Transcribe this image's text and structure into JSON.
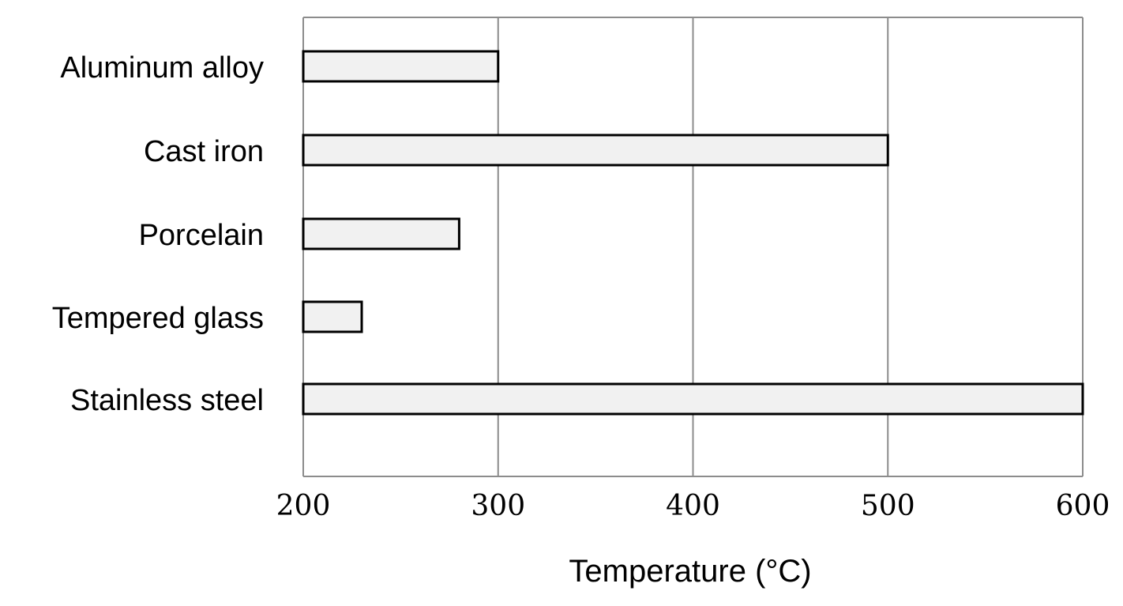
{
  "chart_data": {
    "type": "bar",
    "orientation": "horizontal",
    "categories": [
      "Aluminum alloy",
      "Cast iron",
      "Porcelain",
      "Tempered glass",
      "Stainless steel"
    ],
    "values": [
      300,
      500,
      280,
      230,
      600
    ],
    "title": "",
    "xlabel": "Temperature (°C)",
    "ylabel": "",
    "xlim": [
      200,
      600
    ],
    "xticks": [
      200,
      300,
      400,
      500,
      600
    ],
    "grid": "vertical",
    "legend": "none",
    "colors": {
      "bar_fill": "#f1f1f1",
      "bar_stroke": "#000000",
      "grid": "#8c8c8c"
    }
  }
}
